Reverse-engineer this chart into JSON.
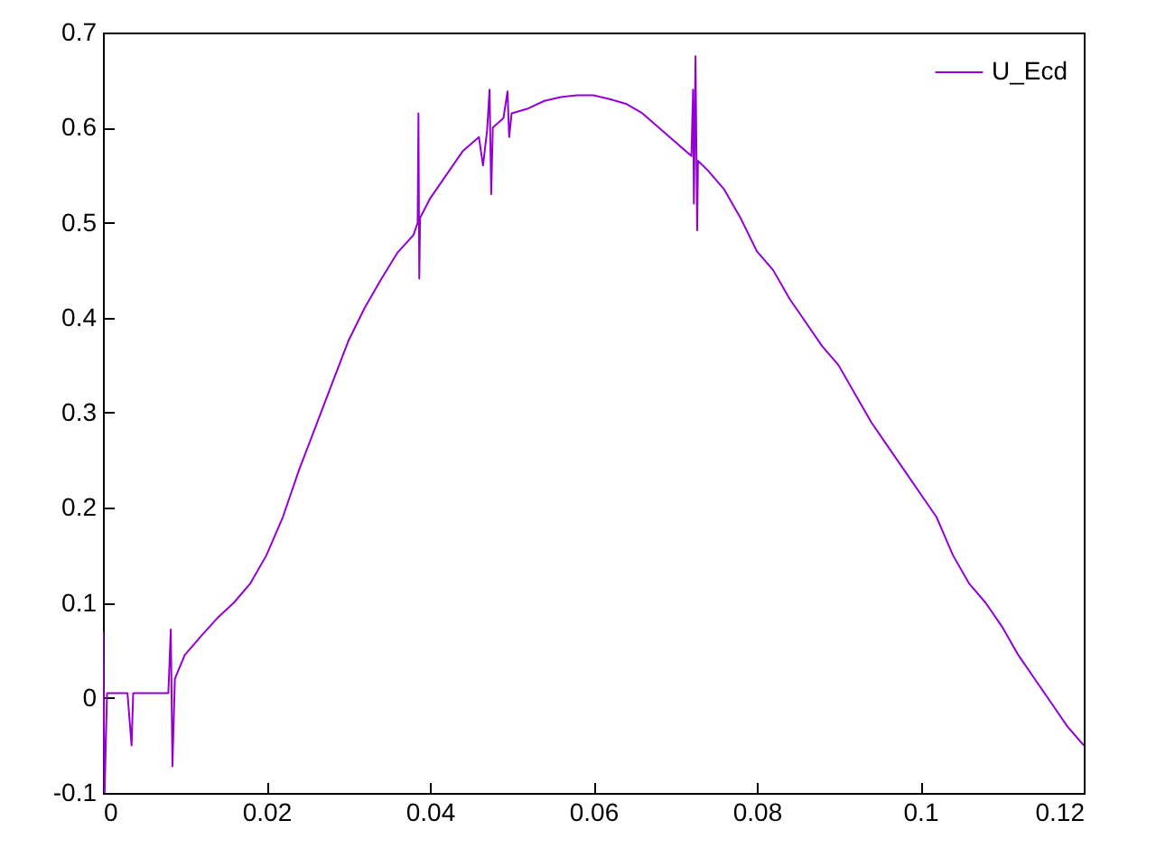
{
  "chart_data": {
    "type": "line",
    "xlim": [
      0,
      0.12
    ],
    "ylim": [
      -0.1,
      0.7
    ],
    "xticks": [
      0,
      0.02,
      0.04,
      0.06,
      0.08,
      0.1,
      0.12
    ],
    "yticks": [
      -0.1,
      0,
      0.1,
      0.2,
      0.3,
      0.4,
      0.5,
      0.6,
      0.7
    ],
    "grid": false,
    "legend": "top right",
    "marker": "none",
    "line_style": "solid",
    "x": [
      0,
      0.0002,
      0.0005,
      0.003,
      0.0035,
      0.0037,
      0.008,
      0.0083,
      0.0085,
      0.0088,
      0.01,
      0.012,
      0.014,
      0.016,
      0.018,
      0.02,
      0.022,
      0.024,
      0.026,
      0.028,
      0.03,
      0.032,
      0.034,
      0.036,
      0.038,
      0.0385,
      0.0386,
      0.0387,
      0.0388,
      0.04,
      0.042,
      0.044,
      0.046,
      0.0465,
      0.047,
      0.0473,
      0.0475,
      0.0477,
      0.049,
      0.0495,
      0.0497,
      0.05,
      0.052,
      0.054,
      0.056,
      0.058,
      0.06,
      0.062,
      0.064,
      0.066,
      0.068,
      0.07,
      0.072,
      0.0722,
      0.0723,
      0.0725,
      0.0727,
      0.0728,
      0.074,
      0.076,
      0.078,
      0.08,
      0.082,
      0.084,
      0.086,
      0.088,
      0.09,
      0.092,
      0.094,
      0.096,
      0.098,
      0.1,
      0.102,
      0.104,
      0.106,
      0.108,
      0.11,
      0.112,
      0.114,
      0.116,
      0.118,
      0.12
    ],
    "series": [
      {
        "name": "U_Ecd",
        "color": "#9400d3",
        "values": [
          0.07,
          -0.1,
          0.005,
          0.005,
          -0.05,
          0.005,
          0.005,
          0.072,
          -0.072,
          0.02,
          0.045,
          0.065,
          0.084,
          0.1,
          0.12,
          0.15,
          0.19,
          0.24,
          0.285,
          0.33,
          0.375,
          0.41,
          0.44,
          0.468,
          0.487,
          0.5,
          0.615,
          0.441,
          0.505,
          0.525,
          0.55,
          0.575,
          0.59,
          0.56,
          0.597,
          0.64,
          0.53,
          0.6,
          0.61,
          0.638,
          0.59,
          0.615,
          0.62,
          0.628,
          0.632,
          0.634,
          0.634,
          0.63,
          0.625,
          0.615,
          0.6,
          0.585,
          0.57,
          0.64,
          0.52,
          0.675,
          0.492,
          0.565,
          0.555,
          0.535,
          0.505,
          0.47,
          0.45,
          0.42,
          0.395,
          0.37,
          0.35,
          0.32,
          0.29,
          0.265,
          0.24,
          0.215,
          0.19,
          0.15,
          0.12,
          0.1,
          0.075,
          0.045,
          0.02,
          -0.005,
          -0.03,
          -0.05
        ]
      }
    ]
  }
}
